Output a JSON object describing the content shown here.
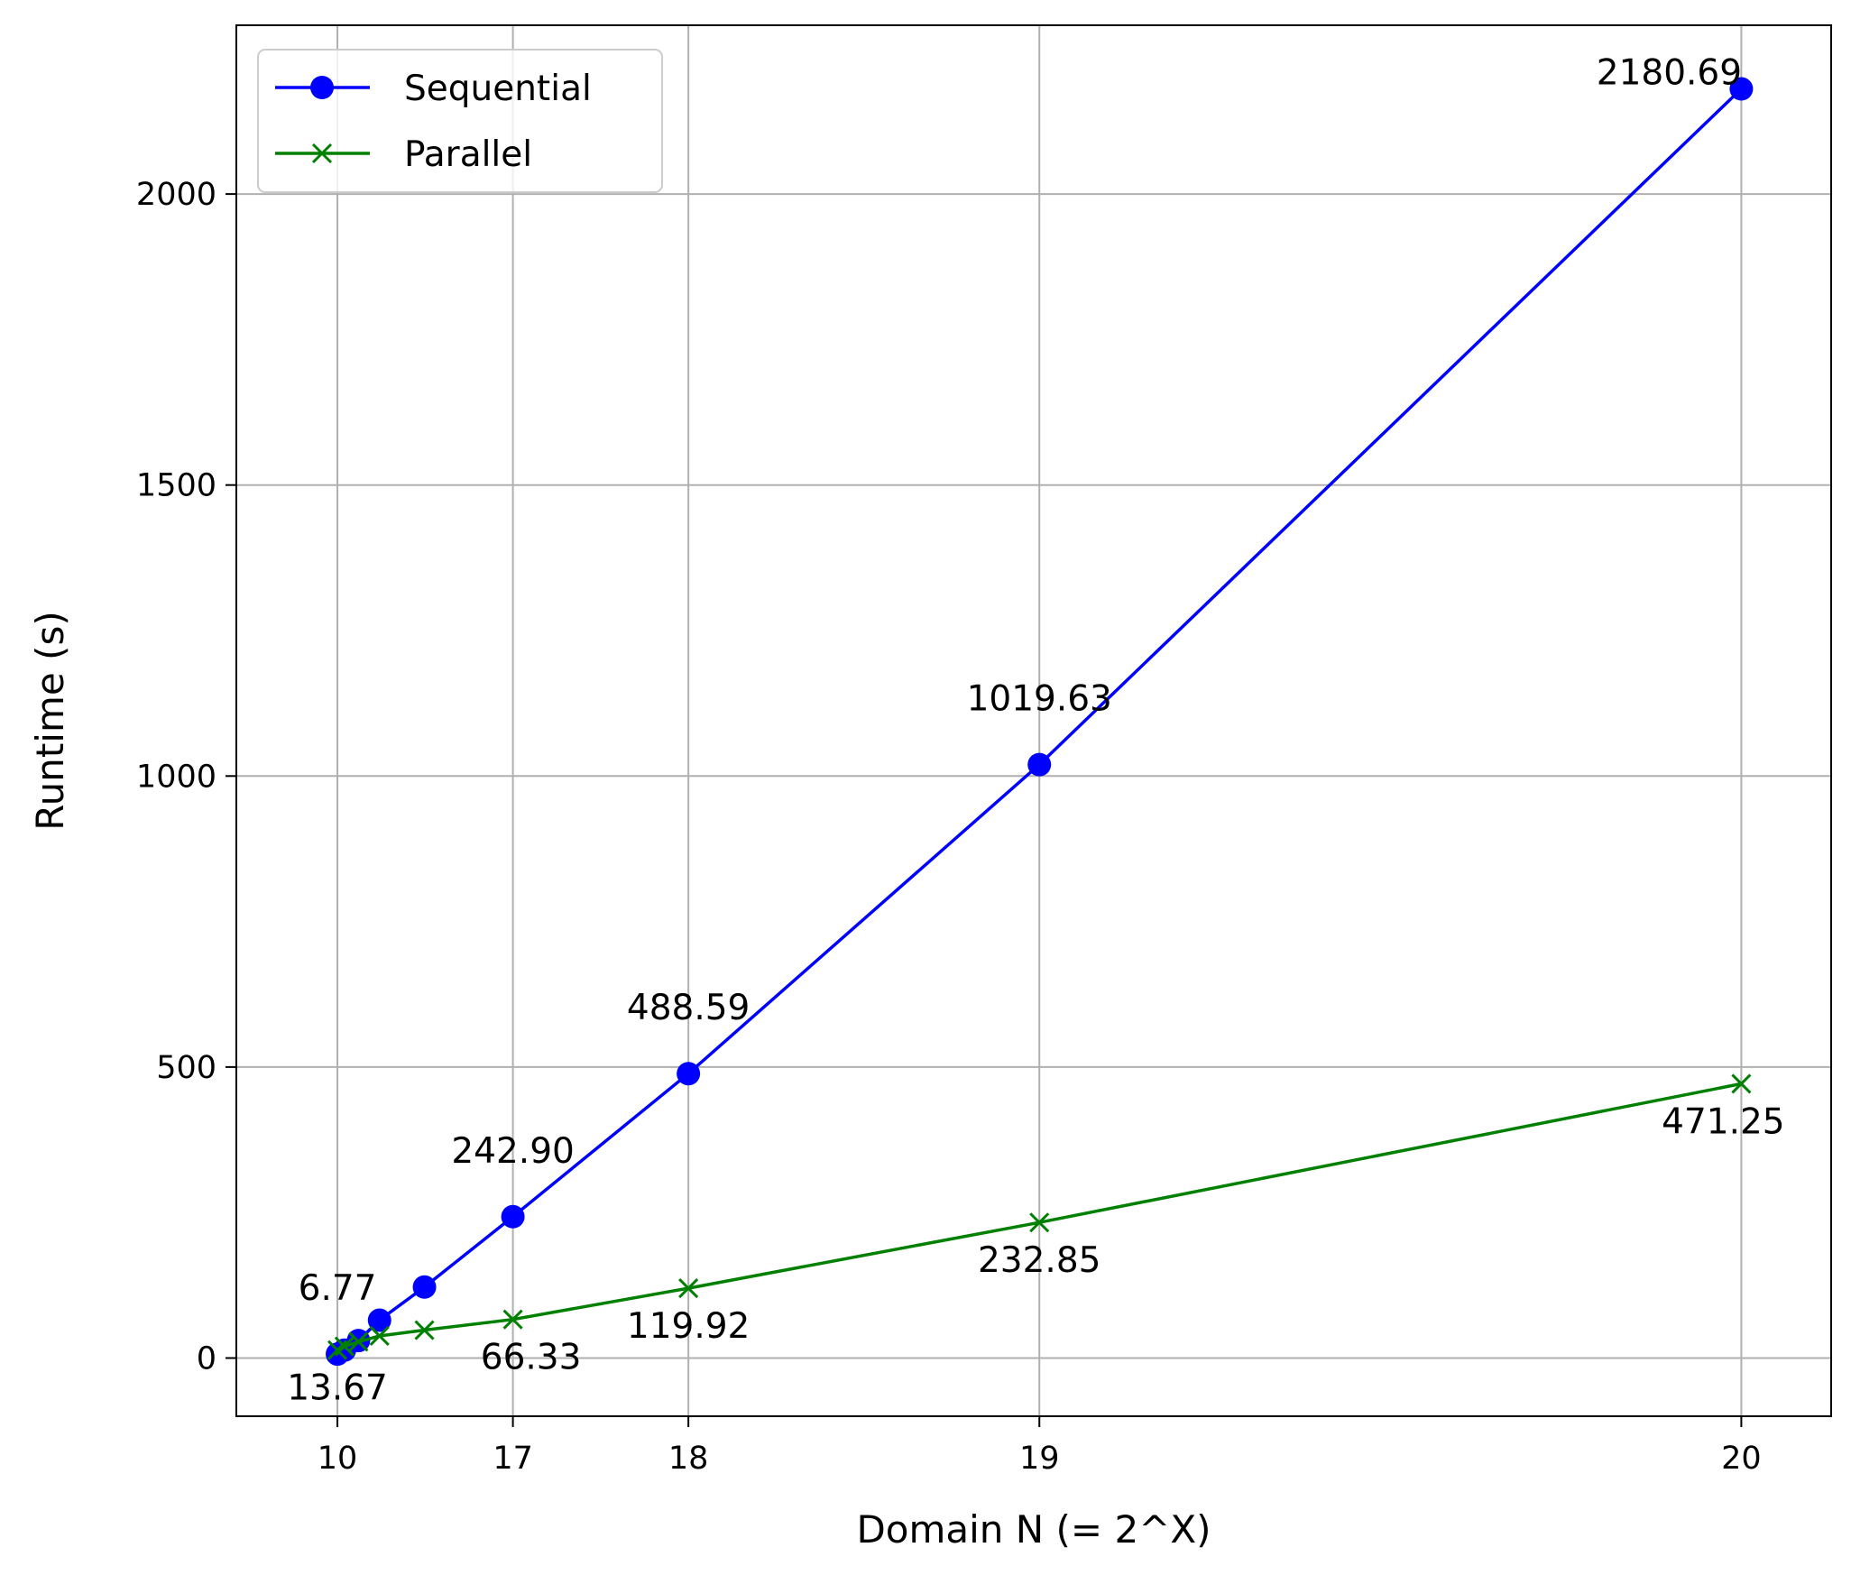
{
  "chart_data": {
    "type": "line",
    "title": "",
    "xlabel": "Domain N (= 2^X)",
    "ylabel": "Runtime (s)",
    "grid": true,
    "legend_position": "upper-left",
    "xlim": [
      9.28,
      20.64
    ],
    "ylim": [
      -100,
      2290
    ],
    "x_ticks": [
      {
        "value": 10,
        "label": "10"
      },
      {
        "value": 11.25,
        "label": "17"
      },
      {
        "value": 12.5,
        "label": "18"
      },
      {
        "value": 15,
        "label": "19"
      },
      {
        "value": 20,
        "label": "20"
      }
    ],
    "y_ticks": [
      {
        "value": 0,
        "label": "0"
      },
      {
        "value": 500,
        "label": "500"
      },
      {
        "value": 1000,
        "label": "1000"
      },
      {
        "value": 1500,
        "label": "1500"
      },
      {
        "value": 2000,
        "label": "2000"
      }
    ],
    "series": [
      {
        "name": "Sequential",
        "color": "#0000ff",
        "marker": "circle",
        "points": [
          {
            "x": 10,
            "y": 6.77
          },
          {
            "x": 10.05,
            "y": 13.5
          },
          {
            "x": 10.15,
            "y": 30
          },
          {
            "x": 10.3,
            "y": 65
          },
          {
            "x": 10.62,
            "y": 122
          },
          {
            "x": 11.25,
            "y": 242.9
          },
          {
            "x": 12.5,
            "y": 488.59
          },
          {
            "x": 15,
            "y": 1019.63
          },
          {
            "x": 20,
            "y": 2180.69
          }
        ],
        "labels": [
          {
            "index": 0,
            "text": "6.77",
            "dx": 0,
            "dy": -60
          },
          {
            "index": 5,
            "text": "242.90",
            "dx": 0,
            "dy": -60
          },
          {
            "index": 6,
            "text": "488.59",
            "dx": 0,
            "dy": -60
          },
          {
            "index": 7,
            "text": "1019.63",
            "dx": 0,
            "dy": -60
          },
          {
            "index": 8,
            "text": "2180.69",
            "dx": -80,
            "dy": -5
          }
        ]
      },
      {
        "name": "Parallel",
        "color": "#008000",
        "marker": "x",
        "points": [
          {
            "x": 10,
            "y": 13.67
          },
          {
            "x": 10.05,
            "y": 20
          },
          {
            "x": 10.15,
            "y": 28
          },
          {
            "x": 10.3,
            "y": 38
          },
          {
            "x": 10.62,
            "y": 48
          },
          {
            "x": 11.25,
            "y": 66.33
          },
          {
            "x": 12.5,
            "y": 119.92
          },
          {
            "x": 15,
            "y": 232.85
          },
          {
            "x": 20,
            "y": 471.25
          }
        ],
        "labels": [
          {
            "index": 0,
            "text": "13.67",
            "dx": 0,
            "dy": 55
          },
          {
            "index": 5,
            "text": "66.33",
            "dx": 20,
            "dy": 55
          },
          {
            "index": 6,
            "text": "119.92",
            "dx": 0,
            "dy": 55
          },
          {
            "index": 7,
            "text": "232.85",
            "dx": 0,
            "dy": 55
          },
          {
            "index": 8,
            "text": "471.25",
            "dx": -20,
            "dy": 55
          }
        ]
      }
    ]
  }
}
